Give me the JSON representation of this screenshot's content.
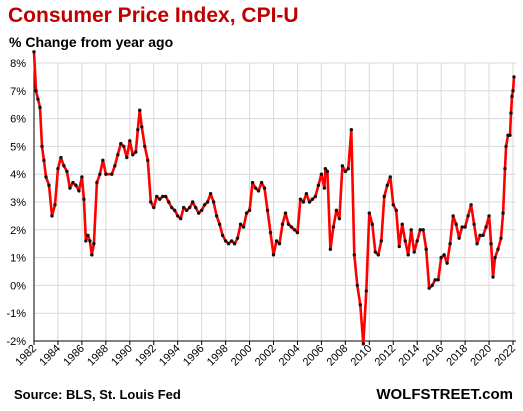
{
  "chart_data": {
    "type": "line",
    "title": "Consumer  Price Index, CPI-U",
    "subtitle": "% Change from year ago",
    "ylabel": "",
    "xlabel": "",
    "ylim": [
      -2,
      8
    ],
    "xlim": [
      1982,
      2022.25
    ],
    "grid": true,
    "legend": "none",
    "y_ticks": [
      -2,
      -1,
      0,
      1,
      2,
      3,
      4,
      5,
      6,
      7,
      8
    ],
    "y_tick_labels": [
      "-2%",
      "-1%",
      "0%",
      "1%",
      "2%",
      "3%",
      "4%",
      "5%",
      "6%",
      "7%",
      "8%"
    ],
    "x_ticks": [
      1982,
      1984,
      1986,
      1988,
      1990,
      1992,
      1994,
      1996,
      1998,
      2000,
      2002,
      2004,
      2006,
      2008,
      2010,
      2012,
      2014,
      2016,
      2018,
      2020,
      2022
    ],
    "x_tick_labels": [
      "1982",
      "1984",
      "1986",
      "1988",
      "1990",
      "1992",
      "1994",
      "1996",
      "1998",
      "2000",
      "2002",
      "2004",
      "2006",
      "2008",
      "2010",
      "2012",
      "2014",
      "2016",
      "2018",
      "2020",
      "2022"
    ],
    "series": [
      {
        "points": [
          [
            1982.0,
            8.4
          ],
          [
            1982.17,
            7.0
          ],
          [
            1982.33,
            6.7
          ],
          [
            1982.5,
            6.4
          ],
          [
            1982.67,
            5.0
          ],
          [
            1982.83,
            4.5
          ],
          [
            1983.0,
            3.9
          ],
          [
            1983.25,
            3.6
          ],
          [
            1983.5,
            2.5
          ],
          [
            1983.75,
            2.9
          ],
          [
            1984.0,
            4.2
          ],
          [
            1984.25,
            4.6
          ],
          [
            1984.5,
            4.3
          ],
          [
            1984.75,
            4.1
          ],
          [
            1985.0,
            3.5
          ],
          [
            1985.25,
            3.7
          ],
          [
            1985.5,
            3.6
          ],
          [
            1985.75,
            3.4
          ],
          [
            1986.0,
            3.9
          ],
          [
            1986.17,
            3.1
          ],
          [
            1986.33,
            1.6
          ],
          [
            1986.5,
            1.8
          ],
          [
            1986.67,
            1.6
          ],
          [
            1986.83,
            1.1
          ],
          [
            1987.0,
            1.5
          ],
          [
            1987.25,
            3.7
          ],
          [
            1987.5,
            4.0
          ],
          [
            1987.75,
            4.5
          ],
          [
            1988.0,
            4.0
          ],
          [
            1988.5,
            4.0
          ],
          [
            1988.75,
            4.3
          ],
          [
            1989.0,
            4.7
          ],
          [
            1989.25,
            5.1
          ],
          [
            1989.5,
            5.0
          ],
          [
            1989.75,
            4.6
          ],
          [
            1990.0,
            5.2
          ],
          [
            1990.25,
            4.7
          ],
          [
            1990.5,
            4.8
          ],
          [
            1990.67,
            5.6
          ],
          [
            1990.83,
            6.3
          ],
          [
            1991.0,
            5.7
          ],
          [
            1991.25,
            5.0
          ],
          [
            1991.5,
            4.5
          ],
          [
            1991.75,
            3.0
          ],
          [
            1992.0,
            2.8
          ],
          [
            1992.25,
            3.2
          ],
          [
            1992.5,
            3.1
          ],
          [
            1992.75,
            3.2
          ],
          [
            1993.0,
            3.2
          ],
          [
            1993.25,
            3.0
          ],
          [
            1993.5,
            2.8
          ],
          [
            1993.75,
            2.7
          ],
          [
            1994.0,
            2.5
          ],
          [
            1994.25,
            2.4
          ],
          [
            1994.5,
            2.8
          ],
          [
            1994.75,
            2.7
          ],
          [
            1995.0,
            2.8
          ],
          [
            1995.25,
            3.0
          ],
          [
            1995.5,
            2.8
          ],
          [
            1995.75,
            2.6
          ],
          [
            1996.0,
            2.7
          ],
          [
            1996.25,
            2.9
          ],
          [
            1996.5,
            3.0
          ],
          [
            1996.75,
            3.3
          ],
          [
            1997.0,
            3.0
          ],
          [
            1997.25,
            2.5
          ],
          [
            1997.5,
            2.2
          ],
          [
            1997.75,
            1.8
          ],
          [
            1998.0,
            1.6
          ],
          [
            1998.25,
            1.5
          ],
          [
            1998.5,
            1.6
          ],
          [
            1998.75,
            1.5
          ],
          [
            1999.0,
            1.7
          ],
          [
            1999.25,
            2.2
          ],
          [
            1999.5,
            2.1
          ],
          [
            1999.75,
            2.6
          ],
          [
            2000.0,
            2.7
          ],
          [
            2000.25,
            3.7
          ],
          [
            2000.5,
            3.5
          ],
          [
            2000.75,
            3.4
          ],
          [
            2001.0,
            3.7
          ],
          [
            2001.25,
            3.5
          ],
          [
            2001.5,
            2.7
          ],
          [
            2001.75,
            1.9
          ],
          [
            2002.0,
            1.1
          ],
          [
            2002.25,
            1.6
          ],
          [
            2002.5,
            1.5
          ],
          [
            2002.75,
            2.2
          ],
          [
            2003.0,
            2.6
          ],
          [
            2003.25,
            2.2
          ],
          [
            2003.5,
            2.1
          ],
          [
            2003.75,
            2.0
          ],
          [
            2004.0,
            1.9
          ],
          [
            2004.25,
            3.1
          ],
          [
            2004.5,
            3.0
          ],
          [
            2004.75,
            3.3
          ],
          [
            2005.0,
            3.0
          ],
          [
            2005.25,
            3.1
          ],
          [
            2005.5,
            3.2
          ],
          [
            2005.75,
            3.6
          ],
          [
            2006.0,
            4.0
          ],
          [
            2006.25,
            3.5
          ],
          [
            2006.33,
            4.2
          ],
          [
            2006.5,
            4.1
          ],
          [
            2006.75,
            1.3
          ],
          [
            2007.0,
            2.1
          ],
          [
            2007.25,
            2.7
          ],
          [
            2007.5,
            2.4
          ],
          [
            2007.75,
            4.3
          ],
          [
            2008.0,
            4.1
          ],
          [
            2008.25,
            4.2
          ],
          [
            2008.5,
            5.6
          ],
          [
            2008.75,
            1.1
          ],
          [
            2009.0,
            0.0
          ],
          [
            2009.25,
            -0.7
          ],
          [
            2009.5,
            -2.1
          ],
          [
            2009.75,
            -0.2
          ],
          [
            2010.0,
            2.6
          ],
          [
            2010.25,
            2.2
          ],
          [
            2010.5,
            1.2
          ],
          [
            2010.75,
            1.1
          ],
          [
            2011.0,
            1.6
          ],
          [
            2011.25,
            3.2
          ],
          [
            2011.5,
            3.6
          ],
          [
            2011.75,
            3.9
          ],
          [
            2012.0,
            2.9
          ],
          [
            2012.25,
            2.7
          ],
          [
            2012.5,
            1.4
          ],
          [
            2012.75,
            2.2
          ],
          [
            2013.0,
            1.6
          ],
          [
            2013.25,
            1.1
          ],
          [
            2013.5,
            2.0
          ],
          [
            2013.75,
            1.2
          ],
          [
            2014.0,
            1.6
          ],
          [
            2014.25,
            2.0
          ],
          [
            2014.5,
            2.0
          ],
          [
            2014.75,
            1.3
          ],
          [
            2015.0,
            -0.1
          ],
          [
            2015.25,
            0.0
          ],
          [
            2015.5,
            0.2
          ],
          [
            2015.75,
            0.2
          ],
          [
            2016.0,
            1.0
          ],
          [
            2016.25,
            1.1
          ],
          [
            2016.5,
            0.8
          ],
          [
            2016.75,
            1.5
          ],
          [
            2017.0,
            2.5
          ],
          [
            2017.25,
            2.2
          ],
          [
            2017.5,
            1.7
          ],
          [
            2017.75,
            2.1
          ],
          [
            2018.0,
            2.1
          ],
          [
            2018.25,
            2.5
          ],
          [
            2018.5,
            2.9
          ],
          [
            2018.75,
            2.2
          ],
          [
            2019.0,
            1.5
          ],
          [
            2019.25,
            1.8
          ],
          [
            2019.5,
            1.8
          ],
          [
            2019.75,
            2.1
          ],
          [
            2020.0,
            2.5
          ],
          [
            2020.17,
            1.5
          ],
          [
            2020.33,
            0.3
          ],
          [
            2020.5,
            1.0
          ],
          [
            2020.75,
            1.3
          ],
          [
            2021.0,
            1.7
          ],
          [
            2021.17,
            2.6
          ],
          [
            2021.33,
            4.2
          ],
          [
            2021.42,
            5.0
          ],
          [
            2021.58,
            5.4
          ],
          [
            2021.75,
            5.4
          ],
          [
            2021.83,
            6.2
          ],
          [
            2021.92,
            6.8
          ],
          [
            2022.0,
            7.0
          ],
          [
            2022.08,
            7.5
          ]
        ]
      }
    ]
  },
  "header": {
    "title": "Consumer  Price Index, CPI-U",
    "subtitle": "% Change from year ago"
  },
  "footer": {
    "source": "Source: BLS, St. Louis Fed",
    "brand": "WOLFSTREET.com"
  },
  "colors": {
    "title": "#c00000",
    "line": "#ff0000",
    "markers": "#111111",
    "grid": "#d9d9d9",
    "axis": "#000000"
  }
}
